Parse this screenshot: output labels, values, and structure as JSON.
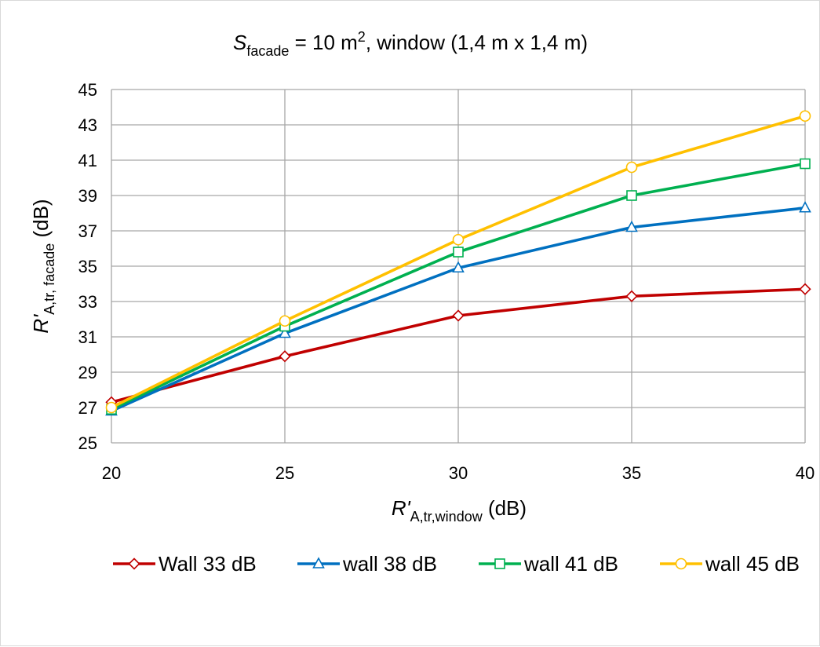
{
  "chart_data": {
    "type": "line",
    "title": {
      "s_symbol": "S",
      "s_sub": "facade",
      "eq": " =  10 m",
      "sup": "2",
      "rest": ",   window (1,4 m x 1,4 m)"
    },
    "xlabel": {
      "symbol": "R'",
      "sub": "A,tr,window",
      "unit": "  (dB)"
    },
    "ylabel": {
      "symbol": "R'",
      "sub": "A,tr, facade",
      "unit": "  (dB)"
    },
    "x": [
      20,
      25,
      30,
      35,
      40
    ],
    "xlim": [
      20,
      40
    ],
    "ylim": [
      25,
      45
    ],
    "xticks": [
      "20",
      "25",
      "30",
      "35",
      "40"
    ],
    "yticks": [
      "25",
      "27",
      "29",
      "31",
      "33",
      "35",
      "37",
      "39",
      "41",
      "43",
      "45"
    ],
    "grid": true,
    "legend_position": "bottom",
    "series": [
      {
        "name": "Wall 33 dB",
        "color": "#c00000",
        "marker": "diamond",
        "values": [
          27.3,
          29.9,
          32.2,
          33.3,
          33.7
        ]
      },
      {
        "name": "wall 38 dB",
        "color": "#0070c0",
        "marker": "triangle",
        "values": [
          26.8,
          31.2,
          34.9,
          37.2,
          38.3
        ]
      },
      {
        "name": "wall 41 dB",
        "color": "#00b050",
        "marker": "square",
        "values": [
          26.9,
          31.6,
          35.8,
          39.0,
          40.8
        ]
      },
      {
        "name": "wall 45 dB",
        "color": "#ffc000",
        "marker": "circle",
        "values": [
          27.0,
          31.9,
          36.5,
          40.6,
          43.5
        ]
      }
    ]
  }
}
